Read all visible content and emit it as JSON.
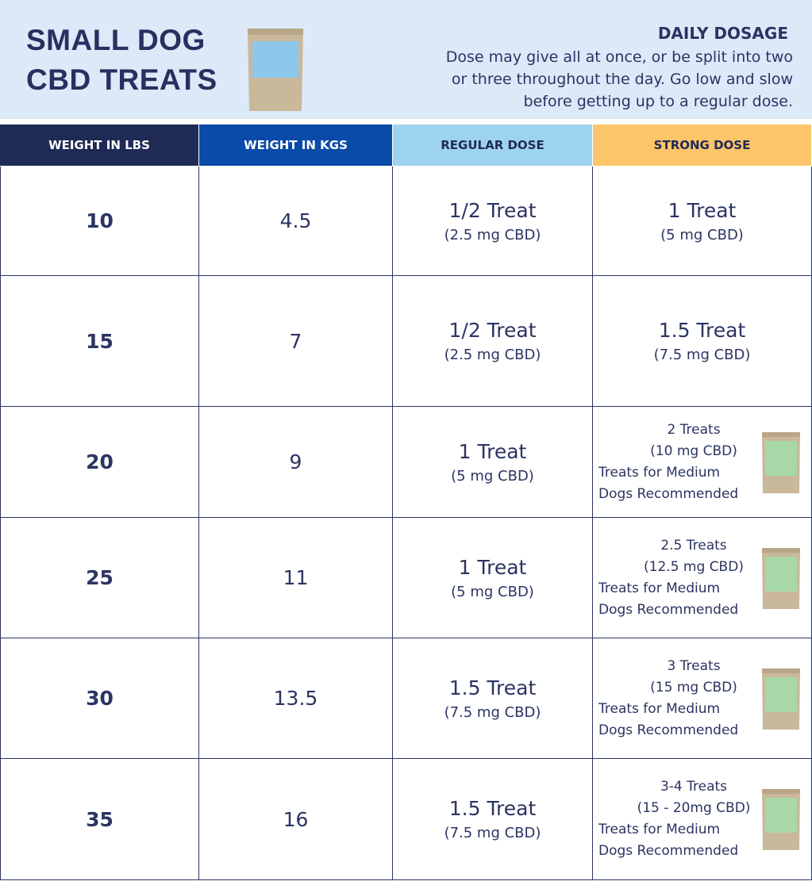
{
  "header": {
    "title": [
      "SMALL DOG",
      "CBD TREATS"
    ],
    "dosage_title": "DAILY DOSAGE",
    "dosage_text": [
      "Dose may give all at once, or be split into two",
      "or three throughout the day. Go low and slow",
      "before getting up to a regular dose."
    ]
  },
  "table": {
    "columns": [
      "WEIGHT IN LBS",
      "WEIGHT IN KGS",
      "REGULAR DOSE",
      "STRONG DOSE"
    ],
    "rows": [
      {
        "lbs": 10,
        "kgs": 4.5,
        "regular": {
          "dose": "1/2 Treat",
          "mg": "(2.5 mg CBD)"
        },
        "strong": {
          "dose": "1 Treat",
          "mg": "(5 mg CBD)"
        }
      },
      {
        "lbs": 15,
        "kgs": 7,
        "regular": {
          "dose": "1/2 Treat",
          "mg": "(2.5 mg CBD)"
        },
        "strong": {
          "dose": "1.5 Treat",
          "mg": "(7.5 mg CBD)"
        }
      },
      {
        "lbs": 20,
        "kgs": 9,
        "regular": {
          "dose": "1 Treat",
          "mg": "(5 mg CBD)"
        },
        "strong": {
          "dose": "2 Treats",
          "mg": "(10 mg CBD)",
          "note": [
            "Treats for Medium",
            "Dogs Recommended"
          ]
        }
      },
      {
        "lbs": 25,
        "kgs": 11,
        "regular": {
          "dose": "1 Treat",
          "mg": "(5 mg CBD)"
        },
        "strong": {
          "dose": "2.5 Treats",
          "mg": "(12.5 mg CBD)",
          "note": [
            "Treats for Medium",
            "Dogs Recommended"
          ]
        }
      },
      {
        "lbs": 30,
        "kgs": 13.5,
        "regular": {
          "dose": "1.5 Treat",
          "mg": "(7.5 mg CBD)"
        },
        "strong": {
          "dose": "3 Treats",
          "mg": "(15 mg CBD)",
          "note": [
            "Treats for Medium",
            "Dogs Recommended"
          ]
        }
      },
      {
        "lbs": 35,
        "kgs": 16,
        "regular": {
          "dose": "1.5 Treat",
          "mg": "(7.5 mg CBD)"
        },
        "strong": {
          "dose": "3-4 Treats",
          "mg": "(15 - 20mg CBD)",
          "note": [
            "Treats for Medium",
            "Dogs Recommended"
          ]
        }
      }
    ]
  }
}
